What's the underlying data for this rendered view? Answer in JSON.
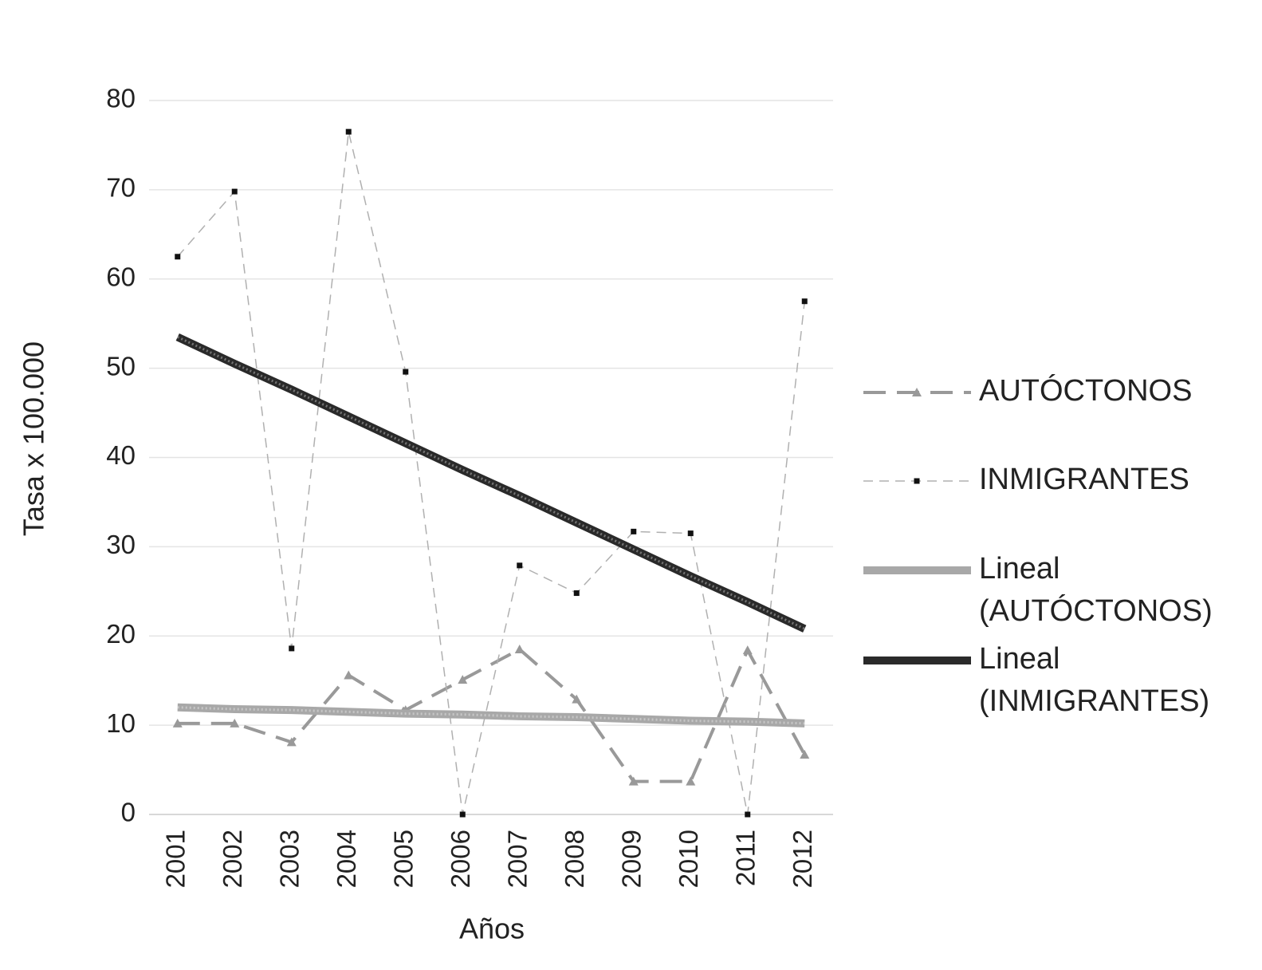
{
  "chart_data": {
    "type": "line",
    "x_label": "Años",
    "y_label": "Tasa x 100.000",
    "categories": [
      "2001",
      "2002",
      "2003",
      "2004",
      "2005",
      "2006",
      "2007",
      "2008",
      "2009",
      "2010",
      "2011",
      "2012"
    ],
    "series": [
      {
        "name": "AUTÓCTONOS",
        "color": "#999999",
        "line_style": "dashed",
        "marker": "triangle",
        "values": [
          10.2,
          10.2,
          8.1,
          15.6,
          11.7,
          15.1,
          18.5,
          12.9,
          3.7,
          3.7,
          18.4,
          6.7
        ]
      },
      {
        "name": "INMIGRANTES",
        "color": "#b0b0b0",
        "line_style": "thin-dashed",
        "marker": "square",
        "values": [
          62.5,
          69.8,
          18.6,
          76.5,
          49.6,
          0,
          27.9,
          24.8,
          31.7,
          31.5,
          0,
          57.5
        ]
      },
      {
        "name": "Lineal (AUTÓCTONOS)",
        "color": "#a8a8a8",
        "line_style": "thick",
        "marker": "none",
        "values": [
          12.0,
          11.8,
          11.7,
          11.5,
          11.3,
          11.2,
          11.0,
          10.9,
          10.7,
          10.5,
          10.4,
          10.2
        ]
      },
      {
        "name": "Lineal (INMIGRANTES)",
        "color": "#2a2a2a",
        "line_style": "thick",
        "marker": "none",
        "values": [
          53.5,
          50.5,
          47.6,
          44.6,
          41.6,
          38.6,
          35.7,
          32.7,
          29.7,
          26.7,
          23.8,
          20.8
        ]
      }
    ],
    "ylim": [
      0,
      80
    ],
    "yticks": [
      0,
      10,
      20,
      30,
      40,
      50,
      60,
      70,
      80
    ],
    "grid": true,
    "legend": "right"
  }
}
